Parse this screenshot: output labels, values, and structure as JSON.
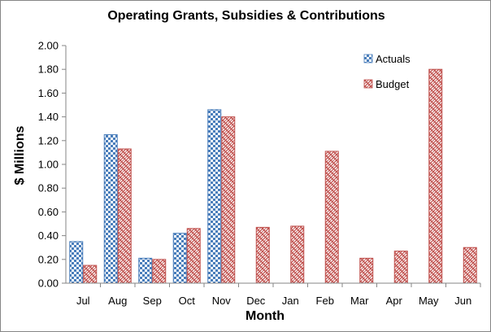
{
  "chart_data": {
    "type": "bar",
    "title": "Operating Grants, Subsidies & Contributions",
    "xlabel": "Month",
    "ylabel": "$ Millions",
    "ylim": [
      0,
      2.0
    ],
    "yticks": [
      "0.00",
      "0.20",
      "0.40",
      "0.60",
      "0.80",
      "1.00",
      "1.20",
      "1.40",
      "1.60",
      "1.80",
      "2.00"
    ],
    "categories": [
      "Jul",
      "Aug",
      "Sep",
      "Oct",
      "Nov",
      "Dec",
      "Jan",
      "Feb",
      "Mar",
      "Apr",
      "May",
      "Jun"
    ],
    "series": [
      {
        "name": "Actuals",
        "color": "#4a7ebb",
        "values": [
          0.35,
          1.25,
          0.21,
          0.42,
          1.46,
          null,
          null,
          null,
          null,
          null,
          null,
          null
        ]
      },
      {
        "name": "Budget",
        "color": "#c0504d",
        "values": [
          0.15,
          1.13,
          0.2,
          0.46,
          1.4,
          0.47,
          0.48,
          1.11,
          0.21,
          0.27,
          1.8,
          0.3
        ]
      }
    ],
    "grid": false,
    "legend_position": "top-right"
  }
}
